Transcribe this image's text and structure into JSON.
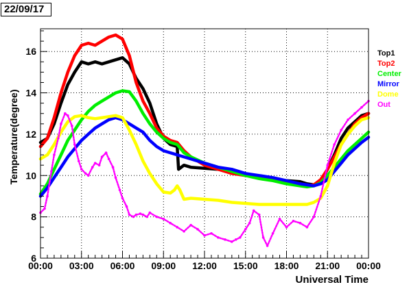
{
  "chart_data": {
    "type": "scatter",
    "date_label": "22/09/17",
    "xlabel": "Universal Time",
    "ylabel": "Temperature(degree)",
    "xlim": [
      0,
      24
    ],
    "ylim": [
      6,
      17.1
    ],
    "x_ticks": [
      {
        "value": 0,
        "label": "00:00"
      },
      {
        "value": 3,
        "label": "03:00"
      },
      {
        "value": 6,
        "label": "06:00"
      },
      {
        "value": 9,
        "label": "09:00"
      },
      {
        "value": 12,
        "label": "12:00"
      },
      {
        "value": 15,
        "label": "15:00"
      },
      {
        "value": 18,
        "label": "18:00"
      },
      {
        "value": 21,
        "label": "21:00"
      },
      {
        "value": 24,
        "label": "00:00"
      }
    ],
    "y_ticks": [
      {
        "value": 6,
        "label": "6"
      },
      {
        "value": 8,
        "label": "8"
      },
      {
        "value": 10,
        "label": "10"
      },
      {
        "value": 12,
        "label": "12"
      },
      {
        "value": 14,
        "label": "14"
      },
      {
        "value": 16,
        "label": "16"
      }
    ],
    "grid": true,
    "legend_position": "right",
    "series": [
      {
        "name": "Top1",
        "color": "#000000",
        "x": [
          0,
          0.5,
          1,
          1.5,
          2,
          2.5,
          3,
          3.5,
          4,
          4.5,
          5,
          5.5,
          6,
          6.5,
          7,
          7.5,
          8,
          8.5,
          9,
          9.5,
          10,
          10.1,
          10.5,
          11,
          12,
          13,
          14,
          15,
          16,
          17,
          18,
          19,
          19.5,
          20,
          20.5,
          21,
          21.5,
          22,
          22.5,
          23,
          23.5,
          24
        ],
        "y": [
          11.6,
          11.8,
          12.5,
          13.5,
          14.4,
          15.0,
          15.5,
          15.4,
          15.5,
          15.4,
          15.5,
          15.6,
          15.7,
          15.4,
          14.7,
          14.2,
          13.5,
          12.5,
          11.8,
          11.5,
          11.4,
          10.3,
          10.5,
          10.4,
          10.35,
          10.3,
          10.15,
          10.0,
          9.9,
          9.8,
          9.75,
          9.7,
          9.6,
          9.55,
          9.7,
          10.3,
          11.0,
          11.8,
          12.3,
          12.6,
          12.9,
          13.0
        ]
      },
      {
        "name": "Top2",
        "color": "#ff0000",
        "x": [
          0,
          0.5,
          1,
          1.5,
          2,
          2.5,
          3,
          3.5,
          4,
          4.5,
          5,
          5.5,
          6,
          6.5,
          7,
          7.5,
          8,
          8.5,
          9,
          9.5,
          10,
          10.5,
          11,
          12,
          13,
          14,
          15,
          16,
          17,
          18,
          19,
          19.5,
          20,
          20.5,
          21,
          21.5,
          22,
          22.5,
          23,
          23.5,
          24
        ],
        "y": [
          11.4,
          11.8,
          12.8,
          14.0,
          15.0,
          15.8,
          16.3,
          16.4,
          16.3,
          16.5,
          16.7,
          16.8,
          16.6,
          15.8,
          14.5,
          13.6,
          13.0,
          12.3,
          11.9,
          11.7,
          11.6,
          11.2,
          10.9,
          10.5,
          10.3,
          10.1,
          10.0,
          9.9,
          9.8,
          9.7,
          9.6,
          9.5,
          9.55,
          9.8,
          10.3,
          10.9,
          11.5,
          12.0,
          12.5,
          12.8,
          13.0
        ]
      },
      {
        "name": "Center",
        "color": "#00ee00",
        "x": [
          0,
          0.5,
          1,
          1.5,
          2,
          2.5,
          3,
          3.5,
          4,
          4.5,
          5,
          5.5,
          6,
          6.5,
          7,
          7.5,
          8,
          8.5,
          9,
          9.5,
          10,
          10.5,
          11,
          12,
          13,
          14,
          15,
          16,
          17,
          18,
          19,
          19.5,
          20,
          20.5,
          21,
          21.5,
          22,
          22.5,
          23,
          23.5,
          24
        ],
        "y": [
          9.1,
          9.6,
          10.3,
          11.0,
          11.7,
          12.2,
          12.7,
          13.1,
          13.4,
          13.6,
          13.8,
          14.0,
          14.1,
          14.05,
          13.6,
          13.0,
          12.5,
          12.1,
          11.8,
          11.6,
          11.5,
          11.1,
          10.9,
          10.6,
          10.4,
          10.2,
          10.0,
          9.85,
          9.75,
          9.6,
          9.5,
          9.45,
          9.5,
          9.65,
          10.0,
          10.4,
          10.8,
          11.2,
          11.5,
          11.8,
          12.1
        ]
      },
      {
        "name": "Mirror",
        "color": "#0000ff",
        "x": [
          0,
          0.5,
          1,
          1.5,
          2,
          2.5,
          3,
          3.5,
          4,
          4.5,
          5,
          5.5,
          6,
          6.5,
          7,
          7.5,
          8,
          8.5,
          9,
          9.5,
          10,
          10.5,
          11,
          12,
          13,
          14,
          15,
          16,
          17,
          18,
          19,
          19.5,
          20,
          20.5,
          21,
          21.5,
          22,
          22.5,
          23,
          23.5,
          24
        ],
        "y": [
          9.0,
          9.4,
          9.9,
          10.4,
          10.9,
          11.3,
          11.7,
          12.0,
          12.3,
          12.5,
          12.7,
          12.8,
          12.7,
          12.5,
          12.3,
          12.1,
          11.7,
          11.4,
          11.2,
          11.1,
          11.0,
          10.9,
          10.8,
          10.6,
          10.4,
          10.3,
          10.1,
          10.0,
          9.9,
          9.75,
          9.6,
          9.55,
          9.5,
          9.6,
          9.8,
          10.2,
          10.6,
          11.0,
          11.3,
          11.6,
          11.85
        ]
      },
      {
        "name": "Dome",
        "color": "#ffff00",
        "x": [
          0,
          0.5,
          1,
          1.5,
          2,
          2.5,
          3,
          3.5,
          4,
          4.5,
          5,
          5.5,
          6,
          6.5,
          7,
          7.5,
          8,
          8.5,
          9,
          9.5,
          9.8,
          10,
          10.2,
          10.5,
          11,
          12,
          13,
          14,
          15,
          16,
          17,
          18,
          19,
          19.5,
          20,
          20.5,
          21,
          21.5,
          22,
          22.5,
          23,
          23.5,
          24
        ],
        "y": [
          10.8,
          11.0,
          11.5,
          12.1,
          12.6,
          12.85,
          12.9,
          12.8,
          12.75,
          12.8,
          12.85,
          12.9,
          12.8,
          12.2,
          11.5,
          10.7,
          10.1,
          9.6,
          9.2,
          9.15,
          9.3,
          9.5,
          9.3,
          8.85,
          8.9,
          8.85,
          8.8,
          8.7,
          8.65,
          8.6,
          8.6,
          8.6,
          8.6,
          8.6,
          8.7,
          8.9,
          9.5,
          10.6,
          11.5,
          12.0,
          12.4,
          12.7,
          12.8
        ]
      },
      {
        "name": "Out",
        "color": "#ff00ff",
        "x": [
          0,
          0.3,
          0.5,
          0.8,
          1,
          1.3,
          1.5,
          1.8,
          2,
          2.3,
          2.5,
          2.8,
          3,
          3.3,
          3.5,
          3.8,
          4,
          4.3,
          4.5,
          4.8,
          5,
          5.3,
          5.5,
          5.8,
          6,
          6.3,
          6.5,
          6.8,
          7,
          7.3,
          7.5,
          7.8,
          8,
          8.5,
          9,
          9.5,
          10,
          10.5,
          11,
          11.5,
          12,
          12.5,
          13,
          13.5,
          14,
          14.3,
          14.6,
          15,
          15.3,
          15.6,
          16,
          16.3,
          16.6,
          17,
          17.5,
          18,
          18.5,
          19,
          19.5,
          20,
          20.5,
          21,
          21.5,
          22,
          22.5,
          23,
          23.5,
          24
        ],
        "y": [
          8.2,
          8.4,
          9.0,
          10.2,
          11.0,
          11.8,
          12.5,
          13.0,
          12.9,
          12.4,
          11.5,
          10.7,
          10.3,
          10.1,
          10.0,
          10.4,
          10.6,
          10.5,
          10.9,
          11.1,
          10.8,
          10.4,
          9.9,
          9.3,
          8.9,
          8.5,
          8.1,
          8.0,
          8.1,
          8.15,
          8.1,
          8.0,
          8.2,
          8.0,
          7.9,
          7.7,
          7.5,
          7.3,
          7.6,
          7.4,
          7.1,
          7.2,
          7.0,
          6.9,
          6.8,
          6.9,
          7.0,
          7.4,
          7.7,
          8.3,
          8.1,
          7.0,
          6.6,
          7.2,
          7.9,
          7.5,
          7.8,
          7.7,
          7.5,
          8.0,
          9.0,
          10.5,
          11.5,
          12.2,
          12.7,
          13.0,
          13.3,
          13.6
        ]
      }
    ]
  }
}
